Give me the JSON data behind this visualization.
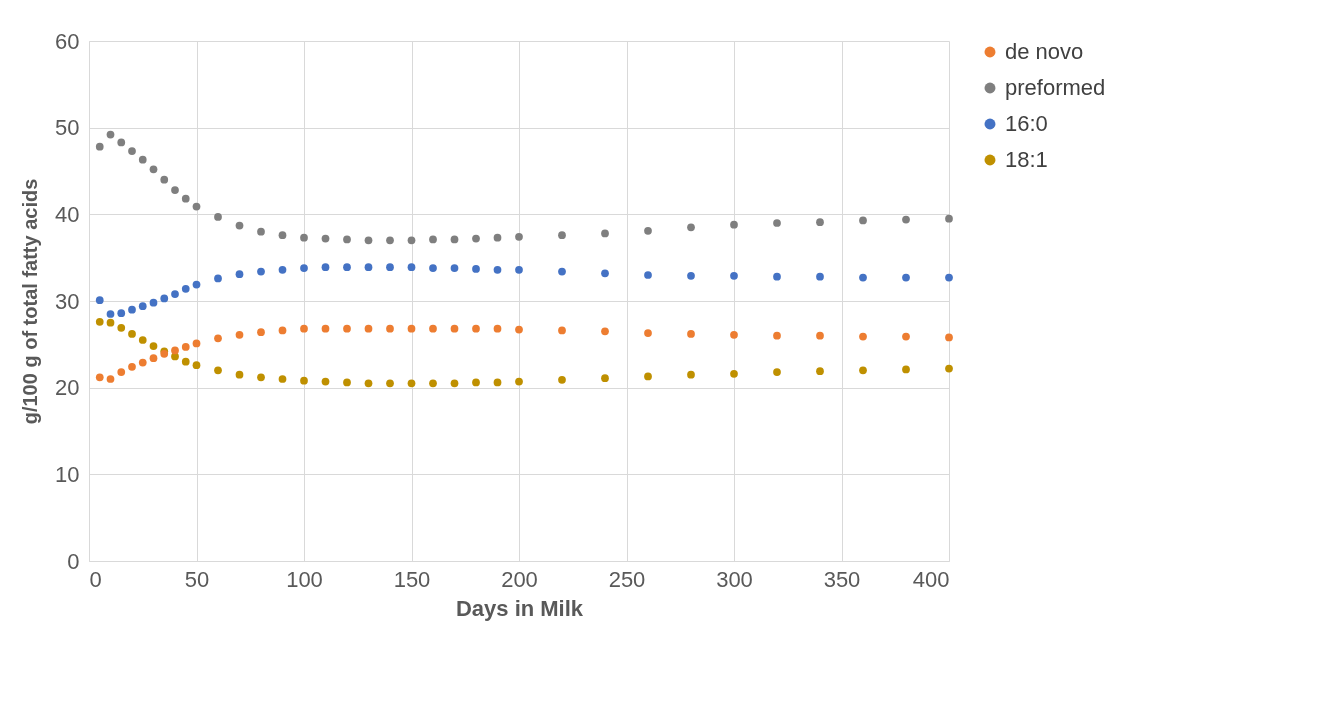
{
  "chart_data": {
    "type": "scatter",
    "xlabel": "Days in Milk",
    "ylabel": "g/100 g of total fatty acids",
    "xlim": [
      0,
      400
    ],
    "ylim": [
      0,
      60
    ],
    "xticks": [
      0,
      50,
      100,
      150,
      200,
      250,
      300,
      350,
      400
    ],
    "yticks": [
      0,
      10,
      20,
      30,
      40,
      50,
      60
    ],
    "grid": true,
    "legend": "right",
    "marker": "circle",
    "x": [
      5,
      10,
      15,
      20,
      25,
      30,
      35,
      40,
      45,
      50,
      60,
      70,
      80,
      90,
      100,
      110,
      120,
      130,
      140,
      150,
      160,
      170,
      180,
      190,
      200,
      220,
      240,
      260,
      280,
      300,
      320,
      340,
      360,
      380,
      400
    ],
    "series": [
      {
        "name": "de novo",
        "color": "#ed7d31",
        "values": [
          21.2,
          21.0,
          21.8,
          22.4,
          22.9,
          23.4,
          23.9,
          24.3,
          24.7,
          25.1,
          25.7,
          26.1,
          26.4,
          26.6,
          26.8,
          26.8,
          26.8,
          26.8,
          26.8,
          26.8,
          26.8,
          26.8,
          26.8,
          26.8,
          26.7,
          26.6,
          26.5,
          26.3,
          26.2,
          26.1,
          26.0,
          26.0,
          25.9,
          25.9,
          25.8
        ]
      },
      {
        "name": "preformed",
        "color": "#7f7f7f",
        "values": [
          47.8,
          49.2,
          48.3,
          47.3,
          46.3,
          45.2,
          44.0,
          42.8,
          41.8,
          40.9,
          39.7,
          38.7,
          38.0,
          37.6,
          37.3,
          37.2,
          37.1,
          37.0,
          37.0,
          37.0,
          37.1,
          37.1,
          37.2,
          37.3,
          37.4,
          37.6,
          37.8,
          38.1,
          38.5,
          38.8,
          39.0,
          39.1,
          39.3,
          39.4,
          39.5
        ]
      },
      {
        "name": "16:0",
        "color": "#4472c4",
        "values": [
          30.1,
          28.5,
          28.6,
          29.0,
          29.4,
          29.8,
          30.3,
          30.8,
          31.4,
          31.9,
          32.6,
          33.1,
          33.4,
          33.6,
          33.8,
          33.9,
          33.9,
          33.9,
          33.9,
          33.9,
          33.8,
          33.8,
          33.7,
          33.6,
          33.6,
          33.4,
          33.2,
          33.0,
          32.9,
          32.9,
          32.8,
          32.8,
          32.7,
          32.7,
          32.7
        ]
      },
      {
        "name": "18:1",
        "color": "#bf9000",
        "values": [
          27.6,
          27.5,
          26.9,
          26.2,
          25.5,
          24.8,
          24.2,
          23.6,
          23.0,
          22.6,
          22.0,
          21.5,
          21.2,
          21.0,
          20.8,
          20.7,
          20.6,
          20.5,
          20.5,
          20.5,
          20.5,
          20.5,
          20.6,
          20.6,
          20.7,
          20.9,
          21.1,
          21.3,
          21.5,
          21.6,
          21.8,
          21.9,
          22.0,
          22.1,
          22.2
        ]
      }
    ]
  }
}
